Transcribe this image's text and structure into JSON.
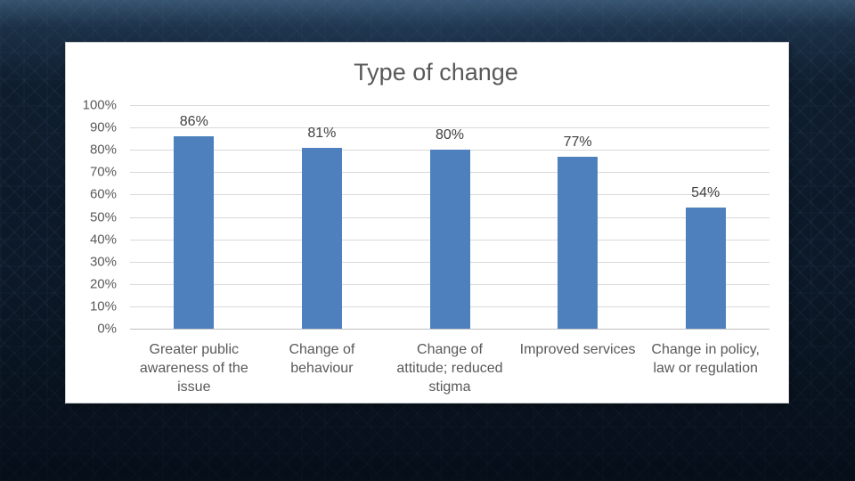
{
  "slide": {
    "background_color": "#0c1928",
    "panel_background": "#ffffff",
    "panel_border_color": "#c9cdd1"
  },
  "chart_data": {
    "type": "bar",
    "title": "Type of change",
    "categories": [
      "Greater public awareness of the issue",
      "Change of behaviour",
      "Change of attitude; reduced stigma",
      "Improved services",
      "Change in policy, law or regulation"
    ],
    "category_lines": [
      [
        "Greater public",
        "awareness of the",
        "issue"
      ],
      [
        "Change of",
        "behaviour"
      ],
      [
        "Change of",
        "attitude; reduced",
        "stigma"
      ],
      [
        "Improved services"
      ],
      [
        "Change in policy,",
        "law or regulation"
      ]
    ],
    "values": [
      86,
      81,
      80,
      77,
      54
    ],
    "data_labels": [
      "86%",
      "81%",
      "80%",
      "77%",
      "54%"
    ],
    "y_ticks": [
      "100%",
      "90%",
      "80%",
      "70%",
      "60%",
      "50%",
      "40%",
      "30%",
      "20%",
      "10%",
      "0%"
    ],
    "ylim": [
      0,
      100
    ],
    "grid": true,
    "legend": "none",
    "xlabel": "",
    "ylabel": "",
    "colors": {
      "bar": "#4d80bd",
      "gridline": "#d9d9d9",
      "axis_line": "#bfbfbf",
      "axis_text": "#595959",
      "data_label": "#404040",
      "title_text": "#595959"
    }
  }
}
